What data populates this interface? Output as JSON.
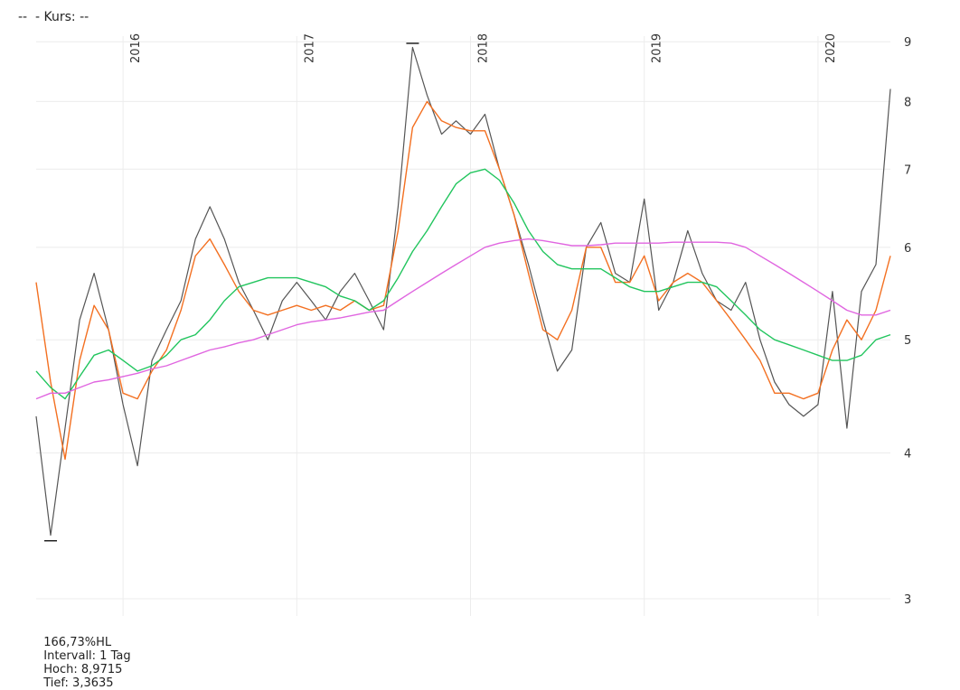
{
  "header": {
    "label": "--  - Kurs: --"
  },
  "footer": {
    "change": "166,73%HL",
    "interval": "Intervall: 1 Tag",
    "high": "Hoch: 8,9715",
    "low": "Tief: 3,3635"
  },
  "chart_data": {
    "type": "line",
    "y_scale": "log",
    "ylim": [
      2.9,
      9.1
    ],
    "y_ticks": [
      "3",
      "4",
      "5",
      "6",
      "7",
      "8",
      "9"
    ],
    "x_tick_labels": [
      "2016",
      "2017",
      "2018",
      "2019",
      "2020"
    ],
    "x_range": [
      "2015-07",
      "2020-06"
    ],
    "grid": true,
    "markers": [
      {
        "label": "Hoch",
        "date": "2017-09",
        "value": 8.9715
      },
      {
        "label": "Tief",
        "date": "2015-08",
        "value": 3.3635
      }
    ],
    "series": [
      {
        "color": "#555555",
        "x": [
          "2015-07",
          "2015-08",
          "2015-09",
          "2015-10",
          "2015-11",
          "2015-12",
          "2016-01",
          "2016-02",
          "2016-03",
          "2016-04",
          "2016-05",
          "2016-06",
          "2016-07",
          "2016-08",
          "2016-09",
          "2016-10",
          "2016-11",
          "2016-12",
          "2017-01",
          "2017-02",
          "2017-03",
          "2017-04",
          "2017-05",
          "2017-06",
          "2017-07",
          "2017-08",
          "2017-09",
          "2017-10",
          "2017-11",
          "2017-12",
          "2018-01",
          "2018-02",
          "2018-03",
          "2018-04",
          "2018-05",
          "2018-06",
          "2018-07",
          "2018-08",
          "2018-09",
          "2018-10",
          "2018-11",
          "2018-12",
          "2019-01",
          "2019-02",
          "2019-03",
          "2019-04",
          "2019-05",
          "2019-06",
          "2019-07",
          "2019-08",
          "2019-09",
          "2019-10",
          "2019-11",
          "2019-12",
          "2020-01",
          "2020-02",
          "2020-03",
          "2020-04",
          "2020-05",
          "2020-06"
        ],
        "values": [
          4.3,
          3.4,
          4.2,
          5.2,
          5.7,
          5.1,
          4.4,
          3.9,
          4.8,
          5.1,
          5.4,
          6.1,
          6.5,
          6.1,
          5.6,
          5.3,
          5.0,
          5.4,
          5.6,
          5.4,
          5.2,
          5.5,
          5.7,
          5.4,
          5.1,
          6.5,
          8.9,
          8.1,
          7.5,
          7.7,
          7.5,
          7.8,
          7.0,
          6.4,
          5.8,
          5.2,
          4.7,
          4.9,
          6.0,
          6.3,
          5.7,
          5.6,
          6.6,
          5.3,
          5.6,
          6.2,
          5.7,
          5.4,
          5.3,
          5.6,
          5.0,
          4.6,
          4.4,
          4.3,
          4.4,
          5.5,
          4.2,
          5.5,
          5.8,
          8.2
        ]
      },
      {
        "color": "#f37021",
        "x": [
          "2015-07",
          "2015-08",
          "2015-09",
          "2015-10",
          "2015-11",
          "2015-12",
          "2016-01",
          "2016-02",
          "2016-03",
          "2016-04",
          "2016-05",
          "2016-06",
          "2016-07",
          "2016-08",
          "2016-09",
          "2016-10",
          "2016-11",
          "2016-12",
          "2017-01",
          "2017-02",
          "2017-03",
          "2017-04",
          "2017-05",
          "2017-06",
          "2017-07",
          "2017-08",
          "2017-09",
          "2017-10",
          "2017-11",
          "2017-12",
          "2018-01",
          "2018-02",
          "2018-03",
          "2018-04",
          "2018-05",
          "2018-06",
          "2018-07",
          "2018-08",
          "2018-09",
          "2018-10",
          "2018-11",
          "2018-12",
          "2019-01",
          "2019-02",
          "2019-03",
          "2019-04",
          "2019-05",
          "2019-06",
          "2019-07",
          "2019-08",
          "2019-09",
          "2019-10",
          "2019-11",
          "2019-12",
          "2020-01",
          "2020-02",
          "2020-03",
          "2020-04",
          "2020-05",
          "2020-06"
        ],
        "values": [
          5.6,
          4.6,
          3.95,
          4.8,
          5.35,
          5.1,
          4.5,
          4.45,
          4.7,
          4.9,
          5.3,
          5.9,
          6.1,
          5.8,
          5.5,
          5.3,
          5.25,
          5.3,
          5.35,
          5.3,
          5.35,
          5.3,
          5.4,
          5.3,
          5.35,
          6.2,
          7.6,
          8.0,
          7.7,
          7.6,
          7.55,
          7.55,
          7.0,
          6.4,
          5.7,
          5.1,
          5.0,
          5.3,
          6.0,
          6.0,
          5.6,
          5.6,
          5.9,
          5.4,
          5.6,
          5.7,
          5.6,
          5.4,
          5.2,
          5.0,
          4.8,
          4.5,
          4.5,
          4.45,
          4.5,
          4.9,
          5.2,
          5.0,
          5.3,
          5.9
        ]
      },
      {
        "color": "#22c55e",
        "x": [
          "2015-07",
          "2015-08",
          "2015-09",
          "2015-10",
          "2015-11",
          "2015-12",
          "2016-01",
          "2016-02",
          "2016-03",
          "2016-04",
          "2016-05",
          "2016-06",
          "2016-07",
          "2016-08",
          "2016-09",
          "2016-10",
          "2016-11",
          "2016-12",
          "2017-01",
          "2017-02",
          "2017-03",
          "2017-04",
          "2017-05",
          "2017-06",
          "2017-07",
          "2017-08",
          "2017-09",
          "2017-10",
          "2017-11",
          "2017-12",
          "2018-01",
          "2018-02",
          "2018-03",
          "2018-04",
          "2018-05",
          "2018-06",
          "2018-07",
          "2018-08",
          "2018-09",
          "2018-10",
          "2018-11",
          "2018-12",
          "2019-01",
          "2019-02",
          "2019-03",
          "2019-04",
          "2019-05",
          "2019-06",
          "2019-07",
          "2019-08",
          "2019-09",
          "2019-10",
          "2019-11",
          "2019-12",
          "2020-01",
          "2020-02",
          "2020-03",
          "2020-04",
          "2020-05",
          "2020-06"
        ],
        "values": [
          4.7,
          4.55,
          4.45,
          4.65,
          4.85,
          4.9,
          4.8,
          4.7,
          4.75,
          4.85,
          5.0,
          5.05,
          5.2,
          5.4,
          5.55,
          5.6,
          5.65,
          5.65,
          5.65,
          5.6,
          5.55,
          5.45,
          5.4,
          5.3,
          5.4,
          5.65,
          5.95,
          6.2,
          6.5,
          6.8,
          6.95,
          7.0,
          6.85,
          6.55,
          6.2,
          5.95,
          5.8,
          5.75,
          5.75,
          5.75,
          5.65,
          5.55,
          5.5,
          5.5,
          5.55,
          5.6,
          5.6,
          5.55,
          5.4,
          5.25,
          5.1,
          5.0,
          4.95,
          4.9,
          4.85,
          4.8,
          4.8,
          4.85,
          5.0,
          5.05
        ]
      },
      {
        "color": "#e066e0",
        "x": [
          "2015-07",
          "2015-08",
          "2015-09",
          "2015-10",
          "2015-11",
          "2015-12",
          "2016-01",
          "2016-02",
          "2016-03",
          "2016-04",
          "2016-05",
          "2016-06",
          "2016-07",
          "2016-08",
          "2016-09",
          "2016-10",
          "2016-11",
          "2016-12",
          "2017-01",
          "2017-02",
          "2017-03",
          "2017-04",
          "2017-05",
          "2017-06",
          "2017-07",
          "2017-08",
          "2017-09",
          "2017-10",
          "2017-11",
          "2017-12",
          "2018-01",
          "2018-02",
          "2018-03",
          "2018-04",
          "2018-05",
          "2018-06",
          "2018-07",
          "2018-08",
          "2018-09",
          "2018-10",
          "2018-11",
          "2018-12",
          "2019-01",
          "2019-02",
          "2019-03",
          "2019-04",
          "2019-05",
          "2019-06",
          "2019-07",
          "2019-08",
          "2019-09",
          "2019-10",
          "2019-11",
          "2019-12",
          "2020-01",
          "2020-02",
          "2020-03",
          "2020-04",
          "2020-05",
          "2020-06"
        ],
        "values": [
          4.45,
          4.5,
          4.5,
          4.55,
          4.6,
          4.62,
          4.65,
          4.68,
          4.72,
          4.75,
          4.8,
          4.85,
          4.9,
          4.93,
          4.97,
          5.0,
          5.05,
          5.1,
          5.15,
          5.18,
          5.2,
          5.22,
          5.25,
          5.28,
          5.3,
          5.4,
          5.5,
          5.6,
          5.7,
          5.8,
          5.9,
          6.0,
          6.05,
          6.08,
          6.1,
          6.08,
          6.05,
          6.02,
          6.02,
          6.03,
          6.05,
          6.05,
          6.05,
          6.05,
          6.06,
          6.06,
          6.06,
          6.06,
          6.05,
          6.0,
          5.9,
          5.8,
          5.7,
          5.6,
          5.5,
          5.4,
          5.3,
          5.25,
          5.25,
          5.3
        ]
      }
    ]
  }
}
